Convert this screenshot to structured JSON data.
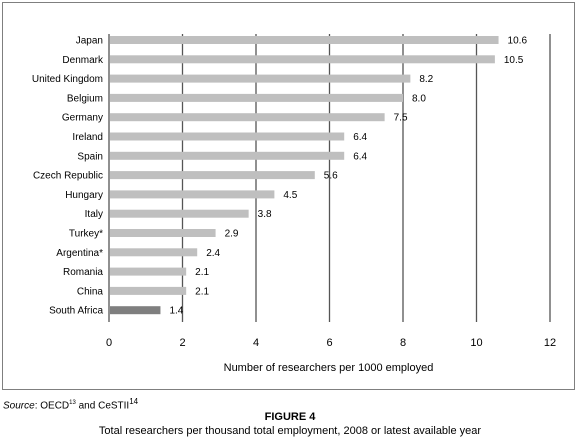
{
  "chart_data": {
    "type": "bar",
    "orientation": "horizontal",
    "categories": [
      "Japan",
      "Denmark",
      "United Kingdom",
      "Belgium",
      "Germany",
      "Ireland",
      "Spain",
      "Czech Republic",
      "Hungary",
      "Italy",
      "Turkey*",
      "Argentina*",
      "Romania",
      "China",
      "South Africa"
    ],
    "values": [
      10.6,
      10.5,
      8.2,
      8.0,
      7.5,
      6.4,
      6.4,
      5.6,
      4.5,
      3.8,
      2.9,
      2.4,
      2.1,
      2.1,
      1.4
    ],
    "value_labels": [
      "10.6",
      "10.5",
      "8.2",
      "8.0",
      "7.5",
      "6.4",
      "6.4",
      "5.6",
      "4.5",
      "3.8",
      "2.9",
      "2.4",
      "2.1",
      "2.1",
      "1.4"
    ],
    "highlighted_category": "South Africa",
    "xlabel": "Number of researchers per 1000 employed",
    "xlim": [
      0,
      12
    ],
    "xticks": [
      0,
      2,
      4,
      6,
      8,
      10,
      12
    ],
    "grid": "vertical",
    "legend": "none",
    "colors": {
      "bar": "#bfbfbf",
      "highlight": "#7f7f7f",
      "grid": "#555555",
      "frame": "#7f7f7f"
    }
  },
  "source": {
    "label": "Source",
    "sep": ": ",
    "oecd": "OECD",
    "oecd_ref": "13",
    "and": " and ",
    "cestii": "CeSTII",
    "cestii_ref": "14"
  },
  "figure": {
    "label": "FIGURE 4",
    "caption": "Total researchers per thousand total employment, 2008 or latest available year"
  }
}
